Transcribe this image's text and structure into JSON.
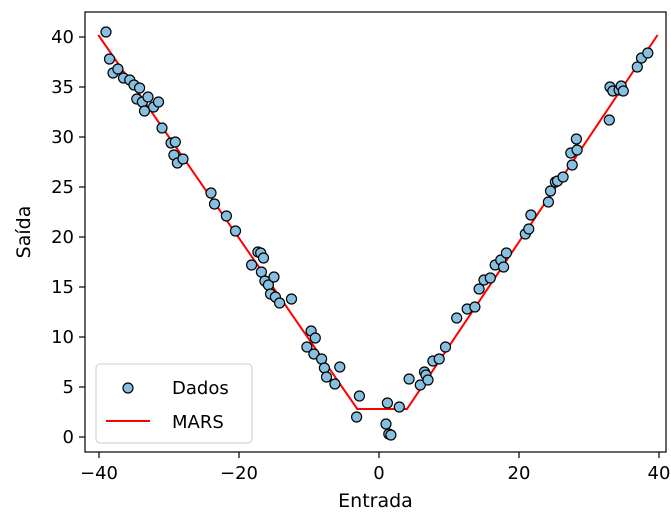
{
  "chart_data": {
    "type": "scatter",
    "title": "",
    "xlabel": "Entrada",
    "ylabel": "Saída",
    "xlim": [
      -42,
      41
    ],
    "ylim": [
      -1.5,
      42.5
    ],
    "xticks": [
      -40,
      -20,
      0,
      20,
      40
    ],
    "yticks": [
      0,
      5,
      10,
      15,
      20,
      25,
      30,
      35,
      40
    ],
    "grid": false,
    "legend_position": "lower-left",
    "series": [
      {
        "name": "Dados",
        "kind": "scatter",
        "marker_color": "#87bfe0",
        "edge_color": "#000000",
        "points": [
          [
            -39.0,
            40.5
          ],
          [
            -38.5,
            37.8
          ],
          [
            -38.0,
            36.4
          ],
          [
            -37.3,
            36.8
          ],
          [
            -36.5,
            35.9
          ],
          [
            -35.6,
            35.7
          ],
          [
            -35.0,
            35.2
          ],
          [
            -34.6,
            33.8
          ],
          [
            -34.2,
            34.9
          ],
          [
            -33.8,
            33.5
          ],
          [
            -33.5,
            32.6
          ],
          [
            -33.0,
            34.0
          ],
          [
            -32.2,
            33.0
          ],
          [
            -31.5,
            33.5
          ],
          [
            -31.0,
            30.9
          ],
          [
            -29.7,
            29.4
          ],
          [
            -29.1,
            29.5
          ],
          [
            -29.3,
            28.2
          ],
          [
            -28.8,
            27.4
          ],
          [
            -28.0,
            27.8
          ],
          [
            -24.0,
            24.4
          ],
          [
            -23.5,
            23.3
          ],
          [
            -21.8,
            22.1
          ],
          [
            -20.5,
            20.6
          ],
          [
            -18.2,
            17.2
          ],
          [
            -17.3,
            18.5
          ],
          [
            -16.9,
            18.4
          ],
          [
            -16.8,
            16.5
          ],
          [
            -16.5,
            17.9
          ],
          [
            -16.3,
            15.6
          ],
          [
            -15.8,
            15.2
          ],
          [
            -15.5,
            14.3
          ],
          [
            -15.0,
            16.0
          ],
          [
            -14.8,
            14.0
          ],
          [
            -14.2,
            13.4
          ],
          [
            -12.5,
            13.8
          ],
          [
            -10.3,
            9.0
          ],
          [
            -9.7,
            10.6
          ],
          [
            -9.3,
            8.3
          ],
          [
            -9.1,
            9.9
          ],
          [
            -8.2,
            7.8
          ],
          [
            -7.8,
            6.9
          ],
          [
            -7.5,
            6.0
          ],
          [
            -6.3,
            5.3
          ],
          [
            -5.6,
            7.0
          ],
          [
            -3.2,
            2.0
          ],
          [
            -2.8,
            4.1
          ],
          [
            1.0,
            1.3
          ],
          [
            1.2,
            3.4
          ],
          [
            1.4,
            0.3
          ],
          [
            1.7,
            0.2
          ],
          [
            2.9,
            3.0
          ],
          [
            4.3,
            5.8
          ],
          [
            5.9,
            5.2
          ],
          [
            6.5,
            6.5
          ],
          [
            6.7,
            6.2
          ],
          [
            7.0,
            5.7
          ],
          [
            7.7,
            7.6
          ],
          [
            8.6,
            7.8
          ],
          [
            9.5,
            9.0
          ],
          [
            11.1,
            11.9
          ],
          [
            12.6,
            12.8
          ],
          [
            13.7,
            13.0
          ],
          [
            14.3,
            14.8
          ],
          [
            15.0,
            15.7
          ],
          [
            15.9,
            15.9
          ],
          [
            16.6,
            17.2
          ],
          [
            17.4,
            17.7
          ],
          [
            17.8,
            17.0
          ],
          [
            18.2,
            18.4
          ],
          [
            20.9,
            20.3
          ],
          [
            21.4,
            20.8
          ],
          [
            21.7,
            22.2
          ],
          [
            24.2,
            23.5
          ],
          [
            24.5,
            24.6
          ],
          [
            25.2,
            25.5
          ],
          [
            25.5,
            25.6
          ],
          [
            26.3,
            26.0
          ],
          [
            27.4,
            28.4
          ],
          [
            27.6,
            27.2
          ],
          [
            28.2,
            29.8
          ],
          [
            28.3,
            28.7
          ],
          [
            32.9,
            31.7
          ],
          [
            33.0,
            35.0
          ],
          [
            33.4,
            34.6
          ],
          [
            34.3,
            34.7
          ],
          [
            34.6,
            35.1
          ],
          [
            34.9,
            34.6
          ],
          [
            36.9,
            37.0
          ],
          [
            37.5,
            37.9
          ],
          [
            38.4,
            38.4
          ]
        ]
      },
      {
        "name": "MARS",
        "kind": "line",
        "color": "#ff0000",
        "points": [
          [
            -40.1,
            40.2
          ],
          [
            -3.1,
            2.8
          ],
          [
            4.0,
            2.8
          ],
          [
            39.8,
            40.2
          ]
        ]
      }
    ]
  }
}
